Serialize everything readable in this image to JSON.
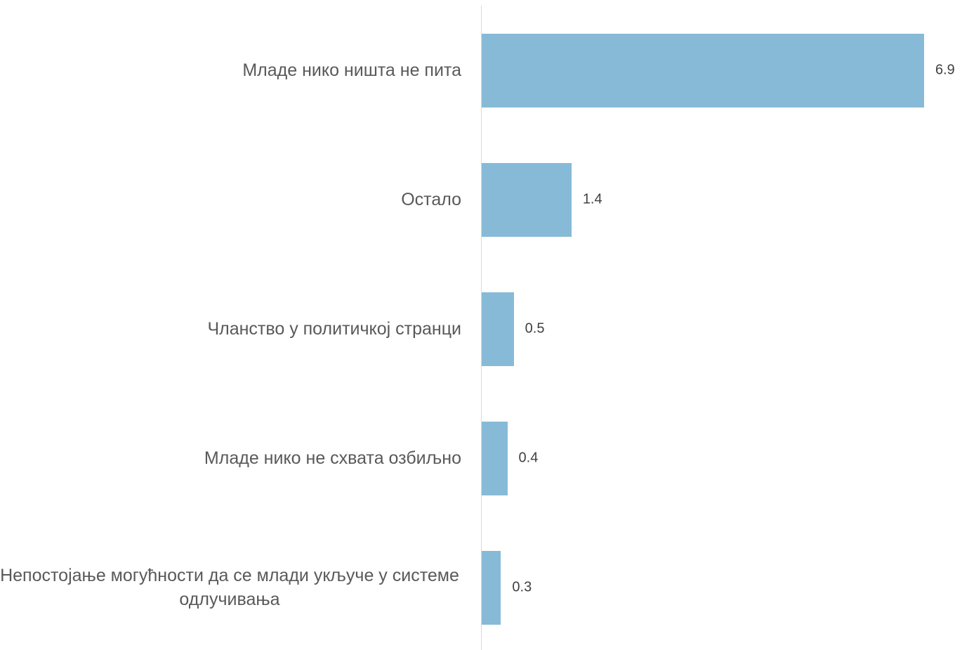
{
  "chart_data": {
    "type": "bar",
    "orientation": "horizontal",
    "categories": [
      "Младе нико ништа не пита",
      "Остало",
      "Чланство у политичкој странци",
      "Младе нико не схвата озбиљно",
      "Непостојање могућности да се млади укључе у системе одлучивања"
    ],
    "values": [
      6.9,
      1.4,
      0.5,
      0.4,
      0.3
    ],
    "color": "#87bad7"
  }
}
